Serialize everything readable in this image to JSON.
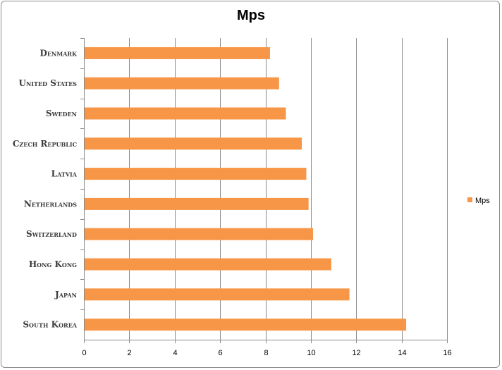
{
  "chart_data": {
    "type": "bar",
    "orientation": "horizontal",
    "title": "Mps",
    "categories": [
      "Denmark",
      "United States",
      "Sweden",
      "Czech Republic",
      "Latvia",
      "Netherlands",
      "Switzerland",
      "Hong Kong",
      "Japan",
      "South Korea"
    ],
    "series": [
      {
        "name": "Mps",
        "values": [
          8.2,
          8.6,
          8.9,
          9.6,
          9.8,
          9.9,
          10.1,
          10.9,
          11.7,
          14.2
        ],
        "color": "#f79646"
      }
    ],
    "xlim": [
      0,
      16
    ],
    "x_ticks": [
      "0",
      "2",
      "4",
      "6",
      "8",
      "10",
      "12",
      "14",
      "16"
    ],
    "grid": "vertical-major",
    "legend_position": "right"
  }
}
